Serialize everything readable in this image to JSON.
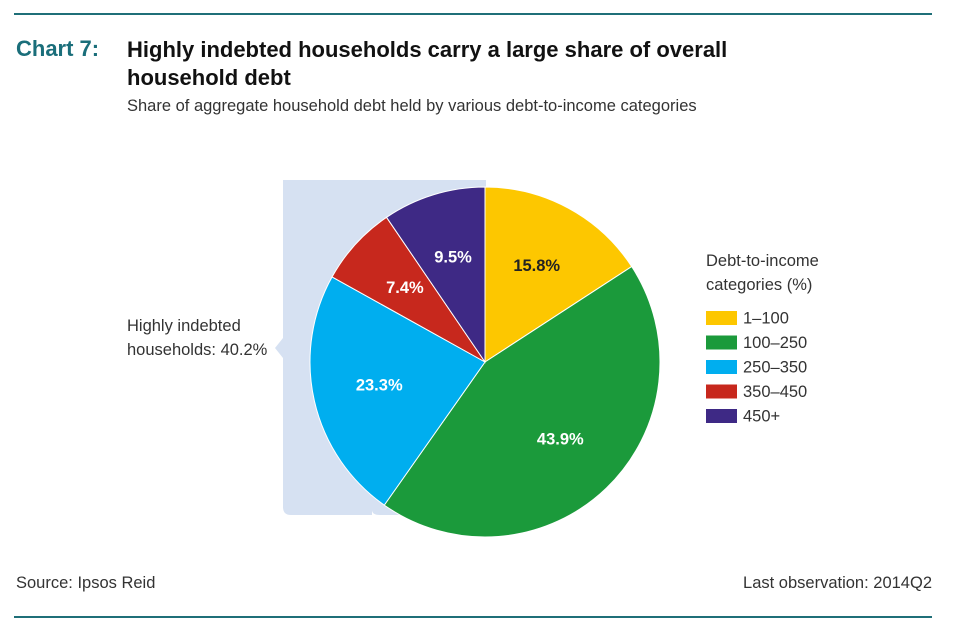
{
  "chart_data": {
    "type": "pie",
    "chart_label": "Chart 7:",
    "title": "Highly indebted households carry a large share of overall household debt",
    "subtitle": "Share of aggregate household debt held by various debt-to-income categories",
    "legend_title": "Debt-to-income categories (%)",
    "legend_position": "right",
    "categories": [
      "1–100",
      "100–250",
      "250–350",
      "350–450",
      "450+"
    ],
    "values": [
      15.8,
      43.9,
      23.3,
      7.4,
      9.5
    ],
    "value_labels": [
      "15.8%",
      "43.9%",
      "23.3%",
      "7.4%",
      "9.5%"
    ],
    "colors": [
      "#fdc700",
      "#1b9a3b",
      "#00aeef",
      "#c7281d",
      "#3e2985"
    ],
    "annotation": "Highly indebted households: 40.2%",
    "source": "Source: Ipsos Reid",
    "note": "Last observation: 2014Q2"
  }
}
